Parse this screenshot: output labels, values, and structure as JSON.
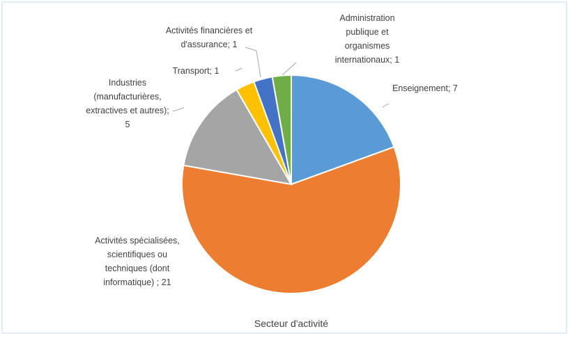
{
  "chart_data": {
    "type": "pie",
    "title": "Secteur d'activité",
    "values": [
      7,
      21,
      5,
      1,
      1,
      1
    ],
    "value_labels": [
      "Enseignement; 7",
      "Activités spécialisées,\nscientifiques ou\ntechniques (dont\ninformatique) ; 21",
      "Industries\n(manufacturières,\nextractives et autres);\n5",
      "Transport; 1",
      "Activités financières et\nd'assurance; 1",
      "Administration\npublique et\norganismes\ninternationaux; 1"
    ],
    "colors": [
      "#5b9bd5",
      "#ed7d31",
      "#a5a5a5",
      "#ffc000",
      "#4472c4",
      "#70ad47"
    ]
  }
}
